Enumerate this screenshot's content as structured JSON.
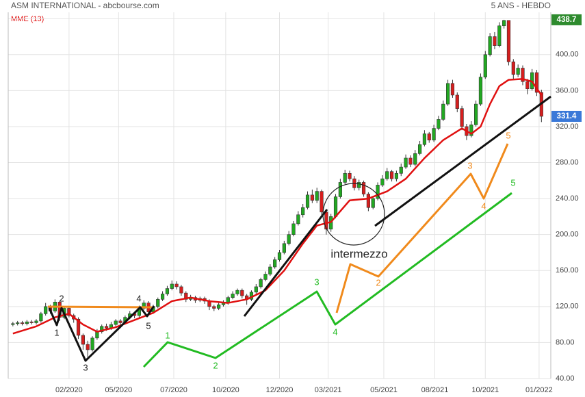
{
  "chart_data": {
    "type": "candlestick",
    "title": "ASM INTERNATIONAL - abcbourse.com",
    "subtitle": "5 ANS - HEBDO",
    "up_color": "#22a822",
    "down_color": "#d61e1e",
    "grid": true,
    "xlim": [
      -1,
      115
    ],
    "xticks": [
      {
        "value": 12,
        "label": "02/2020"
      },
      {
        "value": 22.6,
        "label": "05/2020"
      },
      {
        "value": 34.4,
        "label": "07/2020"
      },
      {
        "value": 45.5,
        "label": "10/2020"
      },
      {
        "value": 57,
        "label": "12/2020"
      },
      {
        "value": 67.4,
        "label": "03/2021"
      },
      {
        "value": 79.3,
        "label": "05/2021"
      },
      {
        "value": 90.2,
        "label": "08/2021"
      },
      {
        "value": 101,
        "label": "10/2021"
      },
      {
        "value": 112.5,
        "label": "01/2022"
      }
    ],
    "ylim": [
      40,
      447
    ],
    "yticks": [
      {
        "value": 40,
        "label": "40.00"
      },
      {
        "value": 80,
        "label": "80.00"
      },
      {
        "value": 120,
        "label": "120.00"
      },
      {
        "value": 160,
        "label": "160.00"
      },
      {
        "value": 200,
        "label": "200.00"
      },
      {
        "value": 240,
        "label": "240.00"
      },
      {
        "value": 280,
        "label": "280.00"
      },
      {
        "value": 320,
        "label": "320.00"
      },
      {
        "value": 360,
        "label": "360.00"
      },
      {
        "value": 400,
        "label": "400.00"
      },
      {
        "value": 440,
        "label": "440.00"
      }
    ],
    "candles": {
      "open": [
        100,
        101,
        102,
        101,
        103,
        102,
        104,
        112,
        120,
        115,
        125,
        108,
        118,
        110,
        106,
        88,
        78,
        72,
        85,
        92,
        98,
        96,
        100,
        104,
        102,
        108,
        112,
        110,
        118,
        124,
        114,
        120,
        128,
        134,
        140,
        145,
        142,
        135,
        128,
        130,
        127,
        129,
        126,
        120,
        118,
        122,
        124,
        130,
        134,
        138,
        132,
        128,
        136,
        142,
        150,
        156,
        164,
        172,
        180,
        190,
        200,
        212,
        222,
        230,
        244,
        238,
        248,
        225,
        206,
        220,
        242,
        258,
        268,
        262,
        252,
        258,
        245,
        230,
        240,
        255,
        262,
        270,
        262,
        268,
        275,
        285,
        278,
        290,
        300,
        312,
        305,
        318,
        328,
        345,
        368,
        355,
        340,
        320,
        310,
        322,
        345,
        375,
        400,
        420,
        410,
        432,
        438,
        392,
        378,
        385,
        370,
        362,
        380,
        358
      ],
      "high": [
        103,
        104,
        104,
        105,
        105,
        106,
        114,
        124,
        122,
        128,
        126,
        120,
        120,
        112,
        108,
        90,
        82,
        87,
        95,
        100,
        101,
        103,
        106,
        106,
        110,
        115,
        114,
        121,
        127,
        126,
        122,
        130,
        137,
        143,
        149,
        148,
        144,
        137,
        133,
        132,
        131,
        131,
        128,
        122,
        124,
        127,
        132,
        137,
        140,
        140,
        134,
        138,
        145,
        152,
        159,
        167,
        175,
        183,
        193,
        204,
        215,
        226,
        234,
        248,
        250,
        252,
        250,
        228,
        223,
        245,
        262,
        272,
        271,
        265,
        261,
        260,
        247,
        243,
        258,
        266,
        274,
        272,
        271,
        279,
        289,
        288,
        294,
        304,
        316,
        314,
        322,
        332,
        349,
        372,
        372,
        358,
        343,
        323,
        326,
        349,
        379,
        404,
        424,
        425,
        436,
        438.7,
        437,
        395,
        389,
        388,
        373,
        384,
        383,
        361
      ],
      "low": [
        98,
        99,
        99,
        99,
        100,
        100,
        102,
        110,
        112,
        113,
        104,
        106,
        108,
        102,
        84,
        72,
        64,
        70,
        83,
        90,
        93,
        94,
        98,
        99,
        100,
        106,
        107,
        108,
        116,
        111,
        112,
        118,
        126,
        132,
        138,
        139,
        132,
        125,
        126,
        124,
        125,
        123,
        116,
        115,
        116,
        120,
        122,
        128,
        132,
        129,
        122,
        126,
        134,
        140,
        148,
        154,
        162,
        170,
        178,
        188,
        198,
        210,
        219,
        228,
        235,
        235,
        222,
        200,
        203,
        218,
        240,
        256,
        259,
        249,
        249,
        242,
        226,
        228,
        238,
        253,
        260,
        259,
        259,
        265,
        273,
        275,
        276,
        288,
        298,
        302,
        303,
        316,
        326,
        343,
        352,
        336,
        316,
        305,
        308,
        320,
        343,
        373,
        398,
        406,
        408,
        429,
        388,
        372,
        375,
        366,
        356,
        360,
        354,
        325
      ],
      "close": [
        101,
        102,
        101,
        103,
        102,
        104,
        112,
        120,
        115,
        125,
        108,
        118,
        110,
        106,
        88,
        78,
        72,
        85,
        92,
        98,
        96,
        100,
        104,
        102,
        108,
        112,
        110,
        118,
        124,
        114,
        120,
        128,
        134,
        140,
        145,
        142,
        135,
        128,
        130,
        127,
        129,
        126,
        120,
        118,
        122,
        124,
        130,
        134,
        138,
        132,
        128,
        136,
        142,
        150,
        156,
        164,
        172,
        180,
        190,
        200,
        212,
        222,
        230,
        244,
        238,
        248,
        225,
        206,
        220,
        242,
        258,
        268,
        262,
        252,
        258,
        245,
        230,
        240,
        255,
        262,
        270,
        262,
        268,
        275,
        285,
        278,
        290,
        300,
        312,
        305,
        318,
        328,
        345,
        368,
        355,
        340,
        320,
        310,
        322,
        345,
        375,
        400,
        420,
        410,
        432,
        438,
        392,
        378,
        385,
        370,
        362,
        380,
        358,
        331.4
      ]
    },
    "series": [
      {
        "name": "MME (13)",
        "color": "#e01010",
        "x": [
          0,
          5,
          9,
          12,
          15,
          18,
          22,
          26,
          30,
          34,
          38,
          42,
          46,
          50,
          54,
          58,
          62,
          65,
          68,
          72,
          76,
          80,
          84,
          88,
          92,
          96,
          98,
          100,
          102,
          104,
          106,
          109,
          111,
          113
        ],
        "values": [
          90,
          98,
          108,
          112,
          100,
          92,
          97,
          105,
          113,
          126,
          130,
          126,
          124,
          128,
          138,
          160,
          190,
          210,
          214,
          238,
          240,
          248,
          262,
          285,
          305,
          318,
          312,
          320,
          345,
          365,
          372,
          373,
          370,
          355
        ]
      }
    ],
    "high_label": 438.7,
    "last_label": 331.4,
    "annotations": [
      "1",
      "2",
      "3",
      "4",
      "5",
      "2",
      "3",
      "4",
      "5",
      "1",
      "2",
      "3",
      "4",
      "5",
      "intermezzo"
    ]
  }
}
